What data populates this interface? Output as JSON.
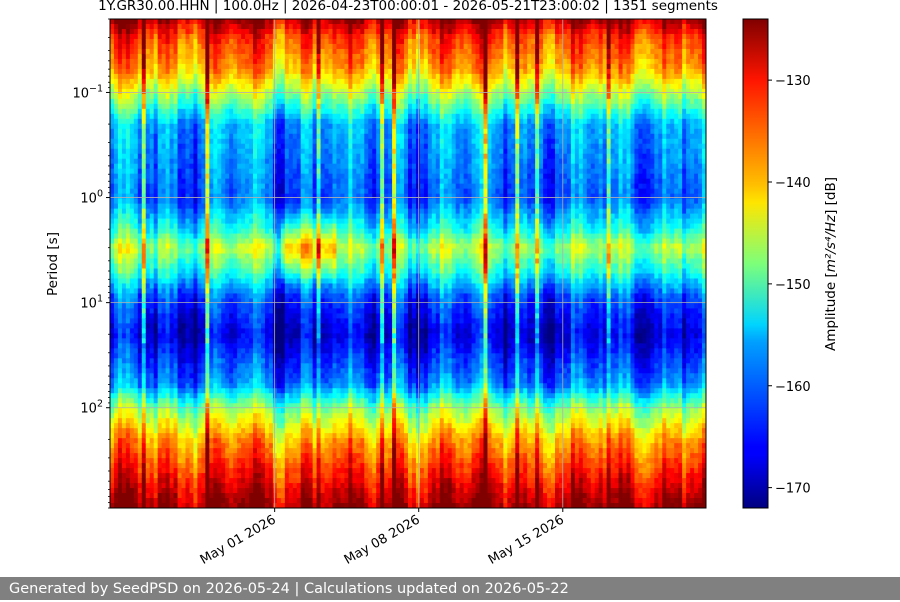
{
  "chart_data": {
    "type": "heatmap",
    "title": "1Y.GR30.00.HHN | 100.0Hz | 2026-04-23T00:00:01 - 2026-05-21T23:00:02 | 1351 segments",
    "xlabel": "",
    "ylabel": "Period [s]",
    "x_scale": "time",
    "x_range": [
      "2026-04-23",
      "2026-05-21"
    ],
    "x_ticks": [
      "May 01 2026",
      "May 08 2026",
      "May 15 2026"
    ],
    "y_scale": "log",
    "y_inverted": true,
    "y_range": [
      0.02,
      900
    ],
    "y_ticks": [
      {
        "value": 0.1,
        "base": "10",
        "exp": "−1"
      },
      {
        "value": 1,
        "base": "10",
        "exp": "0"
      },
      {
        "value": 10,
        "base": "10",
        "exp": "1"
      },
      {
        "value": 100,
        "base": "10",
        "exp": "2"
      }
    ],
    "grid": true,
    "colormap": "jet",
    "colorbar": {
      "label_prefix": "Amplitude [",
      "label_math": "m²/s⁴/Hz",
      "label_suffix": "] [dB]",
      "range": [
        -172,
        -124
      ],
      "ticks": [
        "−130",
        "−140",
        "−150",
        "−160",
        "−170"
      ],
      "tick_values": [
        -130,
        -140,
        -150,
        -160,
        -170
      ]
    },
    "profile": [
      {
        "period": 0.02,
        "db": -126
      },
      {
        "period": 0.03,
        "db": -133
      },
      {
        "period": 0.06,
        "db": -138
      },
      {
        "period": 0.1,
        "db": -146
      },
      {
        "period": 0.2,
        "db": -158
      },
      {
        "period": 1.0,
        "db": -162
      },
      {
        "period": 2.0,
        "db": -154
      },
      {
        "period": 3.0,
        "db": -146
      },
      {
        "period": 5.0,
        "db": -153
      },
      {
        "period": 9.0,
        "db": -163
      },
      {
        "period": 20.0,
        "db": -168
      },
      {
        "period": 60.0,
        "db": -160
      },
      {
        "period": 100.0,
        "db": -148
      },
      {
        "period": 200.0,
        "db": -138
      },
      {
        "period": 500.0,
        "db": -130
      },
      {
        "period": 900.0,
        "db": -125
      }
    ]
  },
  "footer": {
    "text": "Generated by SeedPSD on 2026-05-24 | Calculations updated on 2026-05-22"
  }
}
